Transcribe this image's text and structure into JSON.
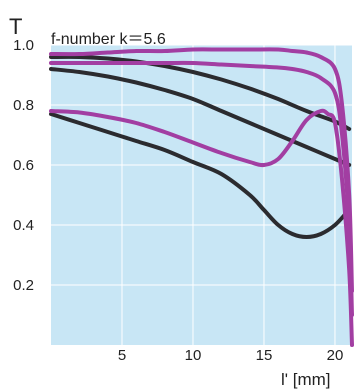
{
  "chart_data": {
    "type": "line",
    "title": "f-number k＝5.6",
    "ylabel": "T",
    "xlabel": "l' [mm]",
    "xlim": [
      0,
      21.2
    ],
    "ylim": [
      0,
      1.0
    ],
    "x_ticks": [
      5,
      10,
      15,
      20
    ],
    "y_ticks": [
      0.2,
      0.4,
      0.6,
      0.8,
      1.0
    ],
    "x_tick_labels": [
      "5",
      "10",
      "15",
      "20"
    ],
    "y_tick_labels": [
      "0.2",
      "0.4",
      "0.6",
      "0.8",
      "1.0"
    ],
    "grid": true,
    "colors": {
      "plot_background": "#c8e6f5",
      "grid": "#ffffff",
      "dark_series": "#2b2b2f",
      "magenta_series": "#a23ea2"
    },
    "series": [
      {
        "color": "dark",
        "x": [
          0,
          2,
          4,
          6,
          8,
          10,
          12,
          14,
          16,
          18,
          20,
          21
        ],
        "y": [
          0.96,
          0.96,
          0.955,
          0.945,
          0.93,
          0.91,
          0.885,
          0.855,
          0.82,
          0.78,
          0.745,
          0.72
        ]
      },
      {
        "color": "dark",
        "x": [
          0,
          2,
          4,
          6,
          8,
          10,
          12,
          14,
          16,
          18,
          20,
          21
        ],
        "y": [
          0.92,
          0.91,
          0.895,
          0.875,
          0.85,
          0.82,
          0.78,
          0.74,
          0.7,
          0.66,
          0.62,
          0.6
        ]
      },
      {
        "color": "dark",
        "x": [
          0,
          2,
          4,
          6,
          8,
          10,
          12,
          14,
          15,
          16,
          17,
          18,
          19,
          20,
          20.8
        ],
        "y": [
          0.77,
          0.74,
          0.71,
          0.68,
          0.65,
          0.61,
          0.57,
          0.5,
          0.45,
          0.4,
          0.37,
          0.36,
          0.37,
          0.4,
          0.44
        ]
      },
      {
        "color": "magenta",
        "x": [
          0,
          2,
          4,
          6,
          8,
          10,
          12,
          14,
          16,
          17,
          18,
          19,
          20,
          20.5,
          21,
          21.2
        ],
        "y": [
          0.97,
          0.97,
          0.975,
          0.98,
          0.98,
          0.985,
          0.985,
          0.985,
          0.985,
          0.98,
          0.975,
          0.96,
          0.92,
          0.8,
          0.5,
          0.18
        ]
      },
      {
        "color": "magenta",
        "x": [
          0,
          2,
          4,
          6,
          8,
          10,
          12,
          14,
          16,
          17,
          18,
          19,
          20,
          20.5,
          21,
          21.2
        ],
        "y": [
          0.94,
          0.94,
          0.94,
          0.94,
          0.94,
          0.94,
          0.935,
          0.93,
          0.925,
          0.92,
          0.91,
          0.89,
          0.84,
          0.7,
          0.4,
          0.1
        ]
      },
      {
        "color": "magenta",
        "x": [
          0,
          2,
          4,
          6,
          8,
          10,
          12,
          14,
          15,
          16,
          17,
          18,
          19,
          19.5,
          20,
          20.5,
          21,
          21.2
        ],
        "y": [
          0.78,
          0.775,
          0.76,
          0.74,
          0.71,
          0.675,
          0.64,
          0.61,
          0.6,
          0.62,
          0.68,
          0.75,
          0.78,
          0.77,
          0.74,
          0.55,
          0.25,
          0.0
        ]
      }
    ]
  }
}
